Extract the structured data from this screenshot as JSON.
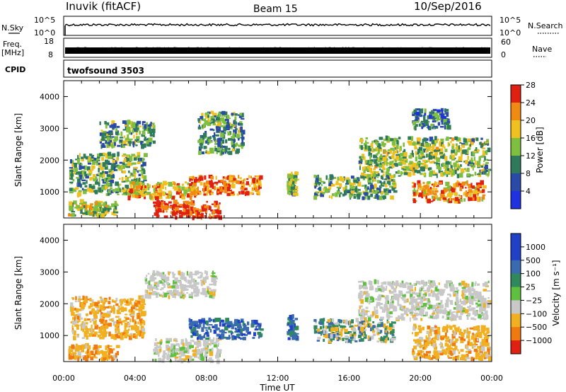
{
  "header": {
    "station": "Inuvik (fitACF)",
    "beam": "Beam 15",
    "date": "10/Sep/2016"
  },
  "top_panels": {
    "nsky_label": "N.Sky",
    "nsky_ticks": [
      "10^5",
      "10^0"
    ],
    "nsearch_label": "N.Search",
    "freq_label": "Freq.",
    "freq_unit": "[MHz]",
    "freq_ticks": [
      "18",
      "8"
    ],
    "nave_ticks": [
      "60",
      "0"
    ],
    "nave_label": "Nave",
    "cpid_label": "CPID",
    "cpid_value": "twofsound 3503"
  },
  "axes": {
    "x_ticks": [
      "00:00",
      "04:00",
      "08:00",
      "12:00",
      "16:00",
      "20:00",
      "00:00"
    ],
    "x_label": "Time UT",
    "y_label": "Slant Range [km]",
    "y_ticks": [
      "1000",
      "2000",
      "3000",
      "4000"
    ]
  },
  "chart_data": [
    {
      "type": "heatmap",
      "name": "power",
      "x_range_hours": [
        0,
        24
      ],
      "y_range_km": [
        180,
        4500
      ],
      "colorbar": {
        "label": "Power [dB]",
        "ticks": [
          "4",
          "8",
          "12",
          "16",
          "20",
          "24",
          "28"
        ],
        "colors": [
          "#1f32e0",
          "#2a4aa8",
          "#2e7a5a",
          "#7fbf3f",
          "#f0c020",
          "#f08a10",
          "#e02010"
        ]
      },
      "regions": [
        {
          "t0": 0.2,
          "t1": 3.0,
          "r0": 250,
          "r1": 700,
          "level": 0.55
        },
        {
          "t0": 0.3,
          "t1": 4.5,
          "r0": 900,
          "r1": 2200,
          "level": 0.45
        },
        {
          "t0": 2.0,
          "t1": 5.0,
          "r0": 2400,
          "r1": 3200,
          "level": 0.4
        },
        {
          "t0": 3.5,
          "t1": 7.5,
          "r0": 800,
          "r1": 1300,
          "level": 0.7
        },
        {
          "t0": 5.0,
          "t1": 8.7,
          "r0": 180,
          "r1": 700,
          "level": 0.95
        },
        {
          "t0": 7.0,
          "t1": 11.0,
          "r0": 900,
          "r1": 1500,
          "level": 0.8
        },
        {
          "t0": 7.5,
          "t1": 10.0,
          "r0": 2200,
          "r1": 3500,
          "level": 0.4
        },
        {
          "t0": 12.5,
          "t1": 13.0,
          "r0": 900,
          "r1": 1600,
          "level": 0.5
        },
        {
          "t0": 14.0,
          "t1": 18.5,
          "r0": 800,
          "r1": 1500,
          "level": 0.45
        },
        {
          "t0": 16.5,
          "t1": 23.8,
          "r0": 1500,
          "r1": 2700,
          "level": 0.5
        },
        {
          "t0": 19.5,
          "t1": 23.5,
          "r0": 700,
          "r1": 1300,
          "level": 0.75
        },
        {
          "t0": 19.5,
          "t1": 21.5,
          "r0": 3000,
          "r1": 3600,
          "level": 0.3
        }
      ]
    },
    {
      "type": "heatmap",
      "name": "velocity",
      "x_range_hours": [
        0,
        24
      ],
      "y_range_km": [
        180,
        4500
      ],
      "colorbar": {
        "label": "Velocity [m s⁻¹]",
        "ticks": [
          "1000",
          "500",
          "100",
          "25",
          "−25",
          "−100",
          "−500",
          "−1000"
        ],
        "colors": [
          "#2040c8",
          "#3a6ab0",
          "#2e8a5a",
          "#5fc040",
          "#c8c8c8",
          "#f0b020",
          "#f07a10",
          "#e02010"
        ]
      },
      "regions": [
        {
          "t0": 0.2,
          "t1": 3.0,
          "r0": 250,
          "r1": 700,
          "vel": "neg"
        },
        {
          "t0": 0.3,
          "t1": 4.5,
          "r0": 900,
          "r1": 2200,
          "vel": "neg"
        },
        {
          "t0": 4.5,
          "t1": 8.5,
          "r0": 2200,
          "r1": 3000,
          "vel": "zero"
        },
        {
          "t0": 5.0,
          "t1": 8.7,
          "r0": 180,
          "r1": 900,
          "vel": "zero"
        },
        {
          "t0": 7.0,
          "t1": 11.0,
          "r0": 900,
          "r1": 1500,
          "vel": "pos"
        },
        {
          "t0": 12.5,
          "t1": 13.0,
          "r0": 900,
          "r1": 1600,
          "vel": "pos"
        },
        {
          "t0": 14.0,
          "t1": 18.5,
          "r0": 800,
          "r1": 1500,
          "vel": "mixed"
        },
        {
          "t0": 16.5,
          "t1": 23.8,
          "r0": 1500,
          "r1": 2700,
          "vel": "zero"
        },
        {
          "t0": 19.5,
          "t1": 23.8,
          "r0": 250,
          "r1": 1300,
          "vel": "neg"
        }
      ]
    }
  ]
}
